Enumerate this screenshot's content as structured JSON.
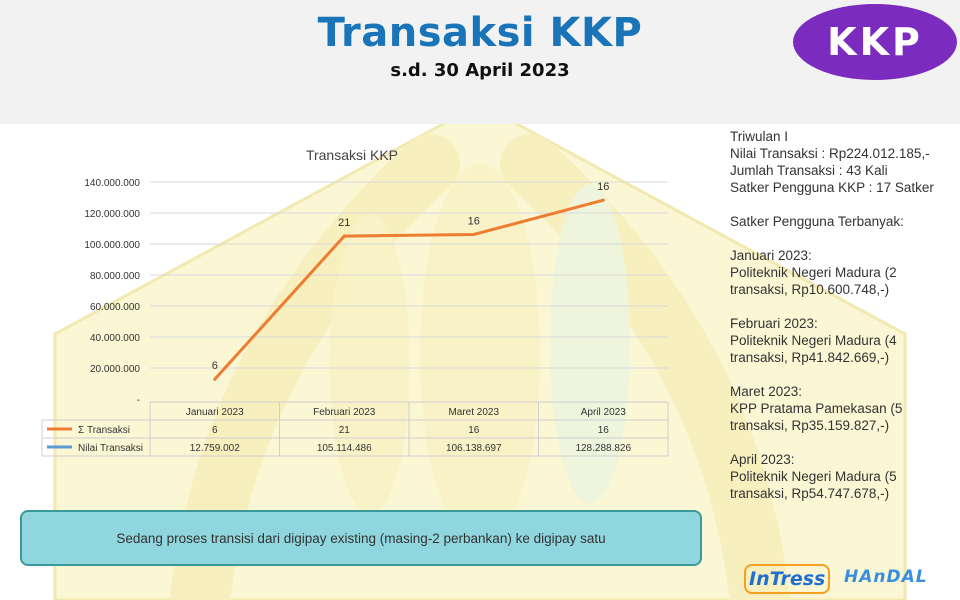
{
  "header": {
    "title": "Transaksi KKP",
    "subtitle": "s.d. 30 April 2023",
    "logo_text": "KKP"
  },
  "colors": {
    "title": "#1a74b8",
    "logo": "#7b2cbf",
    "line_transaksi": "#ed7d31",
    "line_nilai": "#5b9bd5",
    "banner": "#8fd6de"
  },
  "chart_data": {
    "type": "line",
    "title": "Transaksi KKP",
    "categories": [
      "Januari 2023",
      "Februari 2023",
      "Maret 2023",
      "April 2023"
    ],
    "series": [
      {
        "name": "Σ Transaksi",
        "values": [
          6,
          21,
          16,
          16
        ],
        "color": "#ed7d31"
      },
      {
        "name": "Nilai Transaksi",
        "values": [
          12759002,
          105114486,
          106138697,
          128288826
        ],
        "color": "#5b9bd5"
      }
    ],
    "plotted_values": [
      12759002,
      105114486,
      106138697,
      128288826
    ],
    "point_labels": [
      "6",
      "21",
      "16",
      "16"
    ],
    "table_rows": [
      [
        "6",
        "21",
        "16",
        "16"
      ],
      [
        "12.759.002",
        "105.114.486",
        "106.138.697",
        "128.288.826"
      ]
    ],
    "ylim": [
      0,
      140000000
    ],
    "yticks": [
      0,
      20000000,
      40000000,
      60000000,
      80000000,
      100000000,
      120000000,
      140000000
    ],
    "ytick_labels": [
      "-",
      "20.000.000",
      "40.000.000",
      "60.000.000",
      "80.000.000",
      "100.000.000",
      "120.000.000",
      "140.000.000"
    ],
    "grid": true,
    "legend": "data-table"
  },
  "side": {
    "summary": [
      "Triwulan I",
      "Nilai Transaksi : Rp224.012.185,-",
      "Jumlah Transaksi : 43 Kali",
      "Satker Pengguna KKP : 17 Satker"
    ],
    "top_heading": "Satker Pengguna Terbanyak:",
    "months": [
      {
        "month": "Januari 2023:",
        "lines": [
          "Politeknik Negeri Madura (2",
          "transaksi, Rp10.600.748,-)"
        ]
      },
      {
        "month": "Februari 2023:",
        "lines": [
          "Politeknik Negeri Madura (4",
          "transaksi, Rp41.842.669,-)"
        ]
      },
      {
        "month": "Maret 2023:",
        "lines": [
          "KPP Pratama Pamekasan (5",
          "transaksi, Rp35.159.827,-)"
        ]
      },
      {
        "month": "April 2023:",
        "lines": [
          "Politeknik Negeri Madura (5",
          "transaksi, Rp54.747.678,-)"
        ]
      }
    ]
  },
  "banner": {
    "text": "Sedang proses transisi dari digipay existing (masing-2 perbankan) ke digipay satu"
  },
  "footer": {
    "logo1": "InTress",
    "logo2": "HAnDAL"
  }
}
